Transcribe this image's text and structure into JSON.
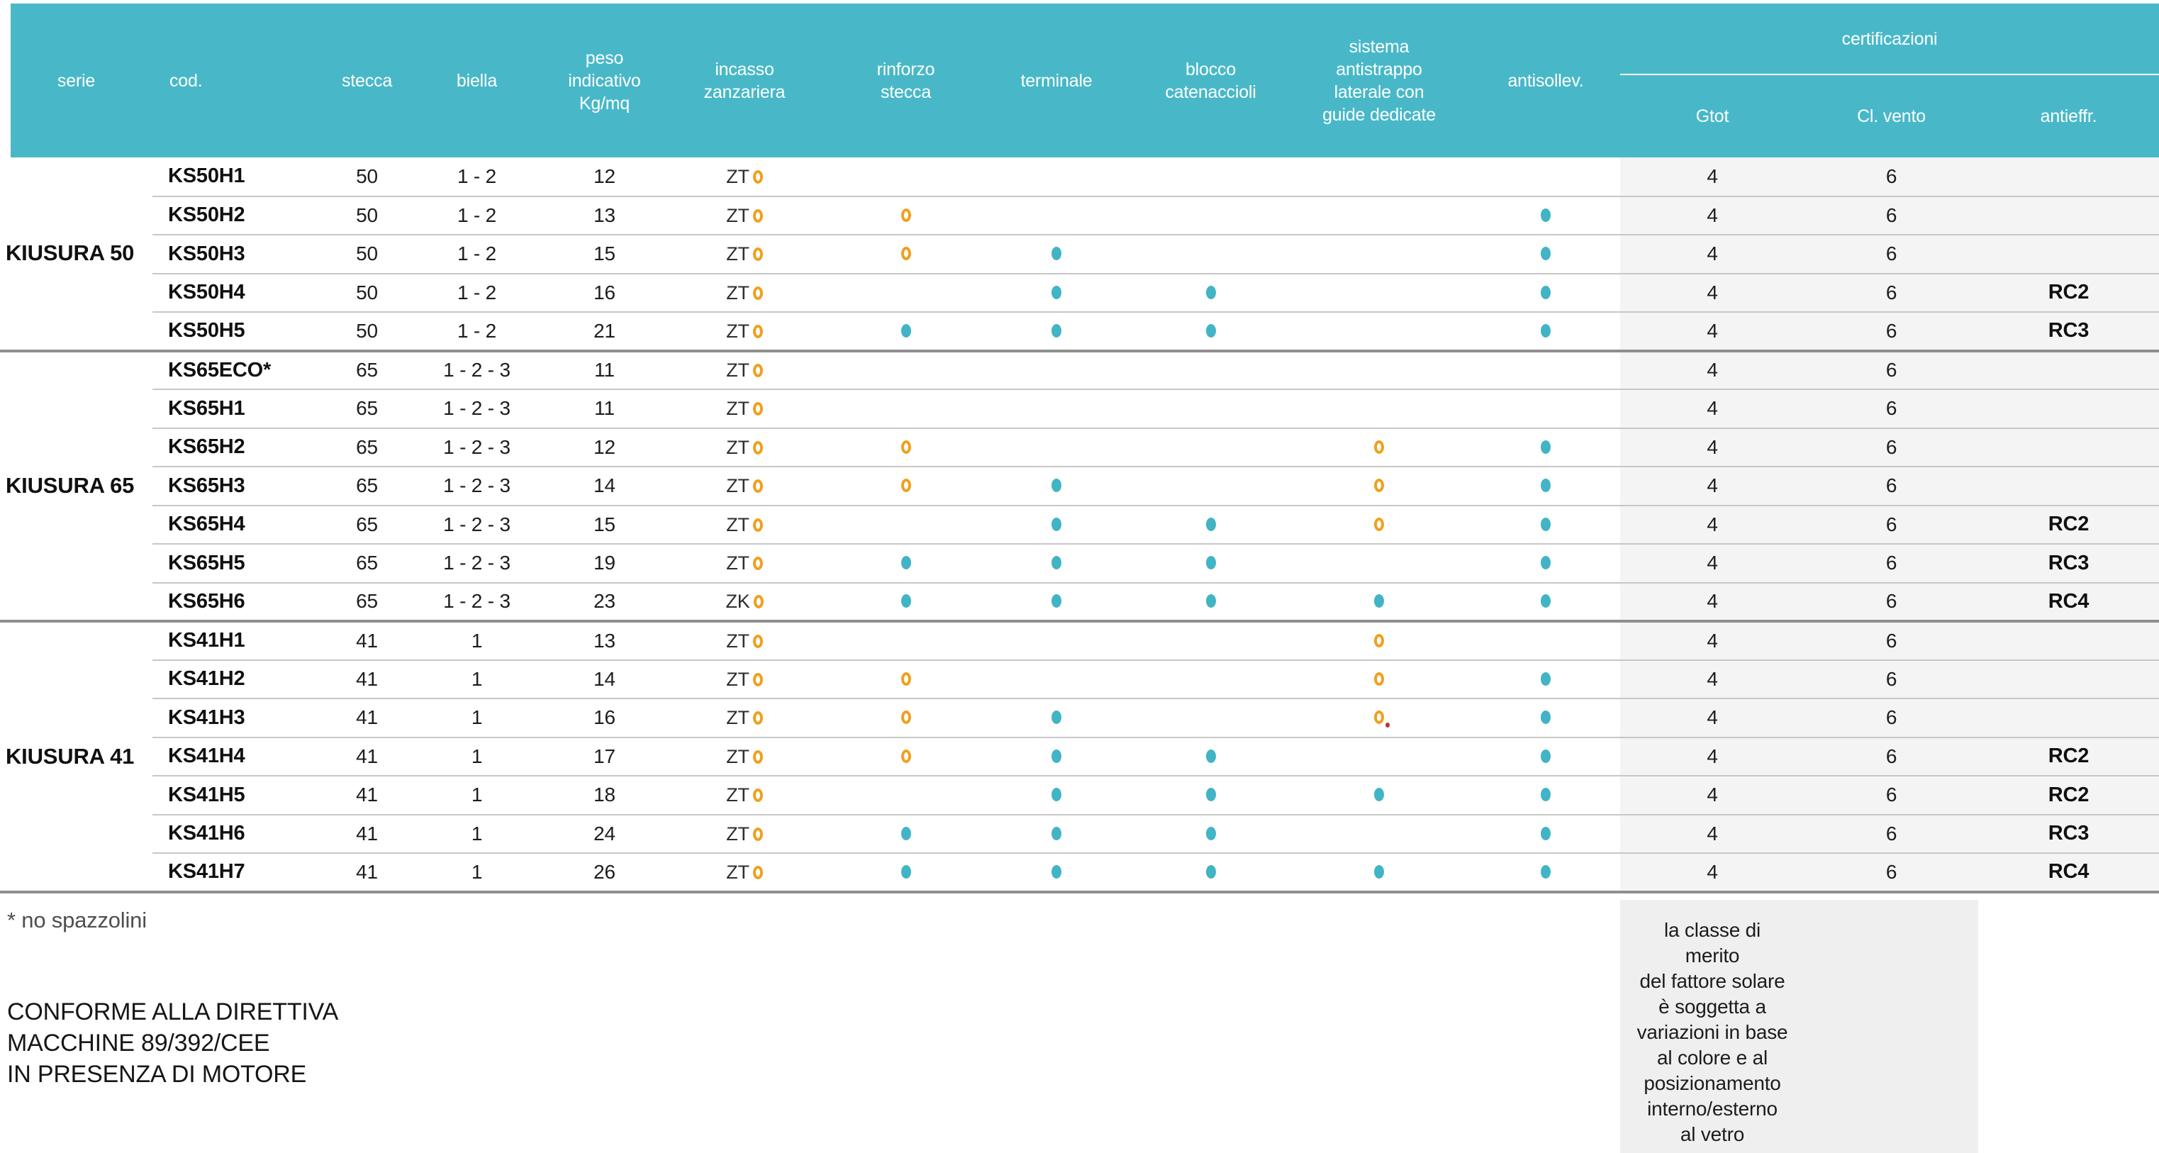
{
  "colors": {
    "header_teal": "#48b8c8",
    "dot_teal": "#41b4c5",
    "ring_orange": "#f0a01e",
    "red_mark": "#b6392d",
    "cert_band_gray": "#f4f4f4",
    "bottom_strip_gray": "#efefef"
  },
  "table": {
    "cert_group_label": "certificazioni",
    "columns": [
      {
        "key": "serie",
        "label": "serie"
      },
      {
        "key": "cod",
        "label": "cod."
      },
      {
        "key": "stecca",
        "label": "stecca"
      },
      {
        "key": "biella",
        "label": "biella"
      },
      {
        "key": "peso",
        "label": "peso\nindicativo\nKg/mq"
      },
      {
        "key": "incasso",
        "label": "incasso\nzanzariera"
      },
      {
        "key": "rinforzo",
        "label": "rinforzo\nstecca"
      },
      {
        "key": "terminale",
        "label": "terminale"
      },
      {
        "key": "blocco",
        "label": "blocco\ncatenaccioli"
      },
      {
        "key": "sistema",
        "label": "sistema\nantistrappo\nlaterale con\nguide dedicate"
      },
      {
        "key": "antisollev",
        "label": "antisollev."
      },
      {
        "key": "gtot",
        "label": "Gtot"
      },
      {
        "key": "clvento",
        "label": "Cl. vento"
      },
      {
        "key": "antieffr",
        "label": "antieffr."
      }
    ],
    "groups": [
      {
        "serie": "KIUSURA 50",
        "rows": [
          {
            "cod": "KS50H1",
            "stecca": "50",
            "biella": "1 - 2",
            "peso": "12",
            "incasso": "ZT",
            "marks": {
              "rinforzo": "",
              "terminale": "",
              "blocco": "",
              "sistema": "",
              "antisollev": ""
            },
            "gtot": "4",
            "clvento": "6",
            "antieffr": ""
          },
          {
            "cod": "KS50H2",
            "stecca": "50",
            "biella": "1 - 2",
            "peso": "13",
            "incasso": "ZT",
            "marks": {
              "rinforzo": "ring",
              "terminale": "",
              "blocco": "",
              "sistema": "",
              "antisollev": "dot"
            },
            "gtot": "4",
            "clvento": "6",
            "antieffr": ""
          },
          {
            "cod": "KS50H3",
            "stecca": "50",
            "biella": "1 - 2",
            "peso": "15",
            "incasso": "ZT",
            "marks": {
              "rinforzo": "ring",
              "terminale": "dot",
              "blocco": "",
              "sistema": "",
              "antisollev": "dot"
            },
            "gtot": "4",
            "clvento": "6",
            "antieffr": ""
          },
          {
            "cod": "KS50H4",
            "stecca": "50",
            "biella": "1 - 2",
            "peso": "16",
            "incasso": "ZT",
            "marks": {
              "rinforzo": "",
              "terminale": "dot",
              "blocco": "dot",
              "sistema": "",
              "antisollev": "dot"
            },
            "gtot": "4",
            "clvento": "6",
            "antieffr": "RC2"
          },
          {
            "cod": "KS50H5",
            "stecca": "50",
            "biella": "1 - 2",
            "peso": "21",
            "incasso": "ZT",
            "marks": {
              "rinforzo": "dot",
              "terminale": "dot",
              "blocco": "dot",
              "sistema": "",
              "antisollev": "dot"
            },
            "gtot": "4",
            "clvento": "6",
            "antieffr": "RC3"
          }
        ]
      },
      {
        "serie": "KIUSURA 65",
        "rows": [
          {
            "cod": "KS65ECO*",
            "stecca": "65",
            "biella": "1 - 2 - 3",
            "peso": "11",
            "incasso": "ZT",
            "marks": {
              "rinforzo": "",
              "terminale": "",
              "blocco": "",
              "sistema": "",
              "antisollev": ""
            },
            "gtot": "4",
            "clvento": "6",
            "antieffr": ""
          },
          {
            "cod": "KS65H1",
            "stecca": "65",
            "biella": "1 - 2 - 3",
            "peso": "11",
            "incasso": "ZT",
            "marks": {
              "rinforzo": "",
              "terminale": "",
              "blocco": "",
              "sistema": "",
              "antisollev": ""
            },
            "gtot": "4",
            "clvento": "6",
            "antieffr": ""
          },
          {
            "cod": "KS65H2",
            "stecca": "65",
            "biella": "1 - 2 - 3",
            "peso": "12",
            "incasso": "ZT",
            "marks": {
              "rinforzo": "ring",
              "terminale": "",
              "blocco": "",
              "sistema": "ring",
              "antisollev": "dot"
            },
            "gtot": "4",
            "clvento": "6",
            "antieffr": ""
          },
          {
            "cod": "KS65H3",
            "stecca": "65",
            "biella": "1 - 2 - 3",
            "peso": "14",
            "incasso": "ZT",
            "marks": {
              "rinforzo": "ring",
              "terminale": "dot",
              "blocco": "",
              "sistema": "ring",
              "antisollev": "dot"
            },
            "gtot": "4",
            "clvento": "6",
            "antieffr": ""
          },
          {
            "cod": "KS65H4",
            "stecca": "65",
            "biella": "1 - 2 - 3",
            "peso": "15",
            "incasso": "ZT",
            "marks": {
              "rinforzo": "",
              "terminale": "dot",
              "blocco": "dot",
              "sistema": "ring",
              "antisollev": "dot"
            },
            "gtot": "4",
            "clvento": "6",
            "antieffr": "RC2"
          },
          {
            "cod": "KS65H5",
            "stecca": "65",
            "biella": "1 - 2 - 3",
            "peso": "19",
            "incasso": "ZT",
            "marks": {
              "rinforzo": "dot",
              "terminale": "dot",
              "blocco": "dot",
              "sistema": "",
              "antisollev": "dot"
            },
            "gtot": "4",
            "clvento": "6",
            "antieffr": "RC3"
          },
          {
            "cod": "KS65H6",
            "stecca": "65",
            "biella": "1 - 2 - 3",
            "peso": "23",
            "incasso": "ZK",
            "marks": {
              "rinforzo": "dot",
              "terminale": "dot",
              "blocco": "dot",
              "sistema": "dot",
              "antisollev": "dot"
            },
            "gtot": "4",
            "clvento": "6",
            "antieffr": "RC4"
          }
        ]
      },
      {
        "serie": "KIUSURA 41",
        "rows": [
          {
            "cod": "KS41H1",
            "stecca": "41",
            "biella": "1",
            "peso": "13",
            "incasso": "ZT",
            "marks": {
              "rinforzo": "",
              "terminale": "",
              "blocco": "",
              "sistema": "ring",
              "antisollev": ""
            },
            "gtot": "4",
            "clvento": "6",
            "antieffr": ""
          },
          {
            "cod": "KS41H2",
            "stecca": "41",
            "biella": "1",
            "peso": "14",
            "incasso": "ZT",
            "marks": {
              "rinforzo": "ring",
              "terminale": "",
              "blocco": "",
              "sistema": "ring",
              "antisollev": "dot"
            },
            "gtot": "4",
            "clvento": "6",
            "antieffr": ""
          },
          {
            "cod": "KS41H3",
            "stecca": "41",
            "biella": "1",
            "peso": "16",
            "incasso": "ZT",
            "marks": {
              "rinforzo": "ring",
              "terminale": "dot",
              "blocco": "",
              "sistema": "ring-reddot",
              "antisollev": "dot"
            },
            "gtot": "4",
            "clvento": "6",
            "antieffr": ""
          },
          {
            "cod": "KS41H4",
            "stecca": "41",
            "biella": "1",
            "peso": "17",
            "incasso": "ZT",
            "marks": {
              "rinforzo": "ring",
              "terminale": "dot",
              "blocco": "dot",
              "sistema": "",
              "antisollev": "dot"
            },
            "gtot": "4",
            "clvento": "6",
            "antieffr": "RC2"
          },
          {
            "cod": "KS41H5",
            "stecca": "41",
            "biella": "1",
            "peso": "18",
            "incasso": "ZT",
            "marks": {
              "rinforzo": "",
              "terminale": "dot",
              "blocco": "dot",
              "sistema": "dot",
              "antisollev": "dot"
            },
            "gtot": "4",
            "clvento": "6",
            "antieffr": "RC2"
          },
          {
            "cod": "KS41H6",
            "stecca": "41",
            "biella": "1",
            "peso": "24",
            "incasso": "ZT",
            "marks": {
              "rinforzo": "dot",
              "terminale": "dot",
              "blocco": "dot",
              "sistema": "",
              "antisollev": "dot"
            },
            "gtot": "4",
            "clvento": "6",
            "antieffr": "RC3"
          },
          {
            "cod": "KS41H7",
            "stecca": "41",
            "biella": "1",
            "peso": "26",
            "incasso": "ZT",
            "marks": {
              "rinforzo": "dot",
              "terminale": "dot",
              "blocco": "dot",
              "sistema": "dot",
              "antisollev": "dot"
            },
            "gtot": "4",
            "clvento": "6",
            "antieffr": "RC4"
          }
        ]
      }
    ]
  },
  "footnotes": {
    "asterisk": "* no spazzolini",
    "directive": "CONFORME ALLA DIRETTIVA\nMACCHINE 89/392/CEE\nIN PRESENZA DI MOTORE",
    "solar_note": "la classe di\nmerito\ndel fattore solare\nè soggetta a\nvariazioni in base\nal colore e al\nposizionamento\ninterno/esterno\nal vetro"
  }
}
